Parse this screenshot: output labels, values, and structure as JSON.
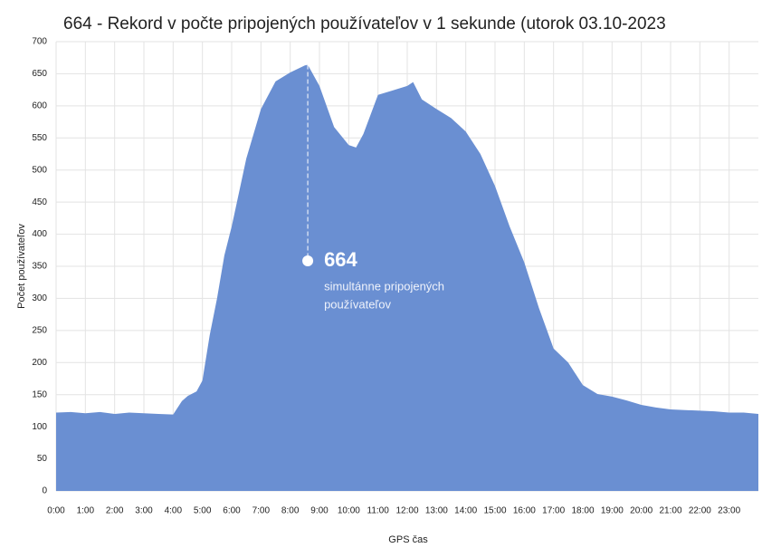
{
  "chart_data": {
    "type": "area",
    "title": "664 - Rekord v počte pripojených používateľov v 1 sekunde (utorok 03.10-2023",
    "y_label": "Počet používateľov",
    "x_label": "GPS čas",
    "color": "#6a8fd2",
    "grid": true,
    "xlim": [
      0,
      24
    ],
    "ylim": [
      0,
      700
    ],
    "yticks": [
      0,
      50,
      100,
      150,
      200,
      250,
      300,
      350,
      400,
      450,
      500,
      550,
      600,
      650,
      700
    ],
    "xticks": [
      {
        "value": 0,
        "label": "0:00"
      },
      {
        "value": 1,
        "label": "1:00"
      },
      {
        "value": 2,
        "label": "2:00"
      },
      {
        "value": 3,
        "label": "3:00"
      },
      {
        "value": 4,
        "label": "4:00"
      },
      {
        "value": 5,
        "label": "5:00"
      },
      {
        "value": 6,
        "label": "6:00"
      },
      {
        "value": 7,
        "label": "7:00"
      },
      {
        "value": 8,
        "label": "8:00"
      },
      {
        "value": 9,
        "label": "9:00"
      },
      {
        "value": 10,
        "label": "10:00"
      },
      {
        "value": 11,
        "label": "11:00"
      },
      {
        "value": 12,
        "label": "12:00"
      },
      {
        "value": 13,
        "label": "13:00"
      },
      {
        "value": 14,
        "label": "14:00"
      },
      {
        "value": 15,
        "label": "15:00"
      },
      {
        "value": 16,
        "label": "16:00"
      },
      {
        "value": 17,
        "label": "17:00"
      },
      {
        "value": 18,
        "label": "18:00"
      },
      {
        "value": 19,
        "label": "19:00"
      },
      {
        "value": 20,
        "label": "20:00"
      },
      {
        "value": 21,
        "label": "21:00"
      },
      {
        "value": 22,
        "label": "22:00"
      },
      {
        "value": 23,
        "label": "23:00"
      }
    ],
    "x": [
      0,
      0.5,
      1,
      1.5,
      2,
      2.5,
      3,
      3.5,
      4,
      4.3,
      4.5,
      4.8,
      5,
      5.25,
      5.5,
      5.75,
      6,
      6.5,
      7,
      7.5,
      8,
      8.5,
      8.6,
      9,
      9.5,
      10,
      10.25,
      10.5,
      11,
      11.5,
      12,
      12.2,
      12.5,
      13,
      13.5,
      14,
      14.5,
      15,
      15.5,
      16,
      16.5,
      17,
      17.5,
      18,
      18.5,
      19,
      19.5,
      20,
      20.5,
      21,
      21.5,
      22,
      22.5,
      23,
      23.5,
      24
    ],
    "values": [
      122,
      123,
      121,
      123,
      120,
      122,
      121,
      120,
      119,
      140,
      148,
      155,
      172,
      243,
      300,
      367,
      412,
      518,
      595,
      638,
      652,
      663,
      664,
      631,
      567,
      539,
      535,
      556,
      617,
      624,
      631,
      637,
      610,
      595,
      581,
      560,
      525,
      475,
      412,
      356,
      285,
      222,
      200,
      165,
      151,
      147,
      141,
      134,
      130,
      127,
      126,
      125,
      124,
      122,
      122,
      120
    ],
    "annotation": {
      "x": 8.6,
      "value": 664,
      "text": [
        "simultánne pripojených",
        "používateľov"
      ]
    }
  }
}
